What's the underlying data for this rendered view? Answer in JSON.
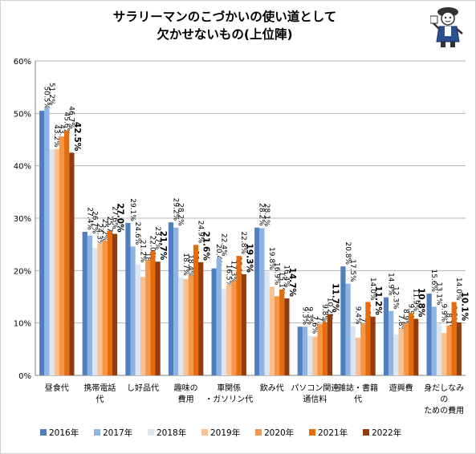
{
  "title_lines": [
    "サラリーマンのこづかいの使い道として",
    "欠かせないもの(上位陣)"
  ],
  "chart_data": {
    "type": "bar",
    "title": "サラリーマンのこづかいの使い道として欠かせないもの(上位陣)",
    "xlabel": "",
    "ylabel": "",
    "ylim": [
      0,
      60
    ],
    "y_ticks": [
      "0%",
      "10%",
      "20%",
      "30%",
      "40%",
      "50%",
      "60%"
    ],
    "grid": true,
    "legend_placement": "bottom",
    "categories": [
      [
        "昼食代"
      ],
      [
        "携帯電話",
        "代"
      ],
      [
        "し好品代"
      ],
      [
        "趣味の",
        "費用"
      ],
      [
        "車関係",
        "・ガソリン代"
      ],
      [
        "飲み代"
      ],
      [
        "パソコン関連",
        "通信料"
      ],
      [
        "雑誌・書籍",
        "代"
      ],
      [
        "遊興費"
      ],
      [
        "身だしなみ",
        "の",
        "ための費用"
      ]
    ],
    "series": [
      {
        "name": "2016年",
        "color": "#4f7fbf",
        "values": [
          50.5,
          27.4,
          29.1,
          29.2,
          20.4,
          28.2,
          9.3,
          20.8,
          14.9,
          15.6
        ]
      },
      {
        "name": "2017年",
        "color": "#8eb4e3",
        "values": [
          51.2,
          26.7,
          24.6,
          28.2,
          22.4,
          28.1,
          9.3,
          17.5,
          12.3,
          13.1
        ]
      },
      {
        "name": "2018年",
        "color": "#dce6f2",
        "values": [
          43.2,
          24.3,
          21.2,
          18.7,
          16.5,
          19.8,
          7.6,
          9.4,
          7.8,
          9.9
        ]
      },
      {
        "name": "2019年",
        "color": "#fac090",
        "values": [
          43.2,
          25.2,
          18.8,
          18.4,
          17.3,
          16.9,
          7.4,
          7.2,
          8.9,
          8.1
        ]
      },
      {
        "name": "2020年",
        "color": "#f79646",
        "values": [
          45.6,
          25.7,
          22.0,
          19.1,
          18.0,
          15.1,
          9.8,
          9.9,
          9.9,
          9.5
        ]
      },
      {
        "name": "2021年",
        "color": "#e46c0a",
        "values": [
          46.7,
          27.6,
          23.7,
          24.9,
          22.8,
          16.4,
          10.2,
          14.0,
          11.9,
          14.0
        ]
      },
      {
        "name": "2022年",
        "color": "#943c0c",
        "values": [
          42.5,
          27.0,
          21.7,
          21.6,
          19.3,
          14.7,
          11.7,
          11.2,
          10.8,
          10.1
        ]
      }
    ],
    "bold_series": "2022年"
  }
}
